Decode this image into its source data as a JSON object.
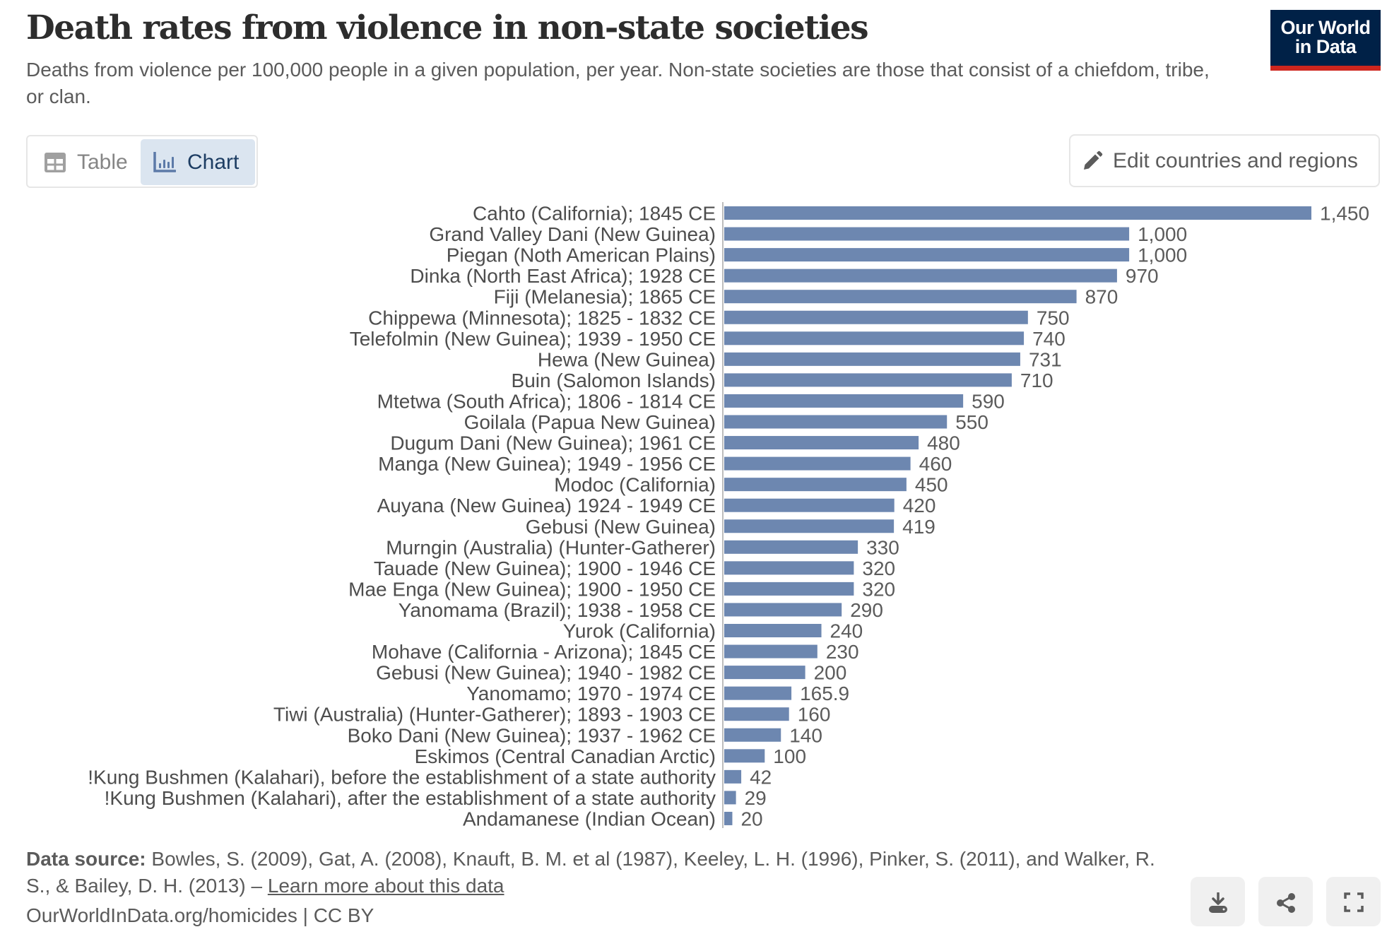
{
  "header": {
    "title": "Death rates from violence in non-state societies",
    "subtitle": "Deaths from violence per 100,000 people in a given population, per year. Non-state societies are those that consist of a chiefdom, tribe, or clan.",
    "logo_line1": "Our World",
    "logo_line2": "in Data"
  },
  "tabs": [
    {
      "label": "Table",
      "icon": "table-icon",
      "active": false
    },
    {
      "label": "Chart",
      "icon": "bar-chart-icon",
      "active": true
    }
  ],
  "edit_button": {
    "label": "Edit countries and regions",
    "icon": "pencil-icon"
  },
  "colors": {
    "bar": "#6d87b0",
    "brand": "#002147",
    "brand_accent": "#ce261e",
    "active_tab_bg": "#dbe5f0"
  },
  "chart_data": {
    "type": "bar",
    "orientation": "horizontal",
    "title": "Death rates from violence in non-state societies",
    "xlabel": "",
    "ylabel": "",
    "unit": "deaths per 100,000 per year",
    "xlim": [
      0,
      1450
    ],
    "grid": false,
    "categories": [
      "Cahto (California); 1845 CE",
      "Grand Valley Dani (New Guinea)",
      "Piegan (Noth American Plains)",
      "Dinka (North East Africa); 1928 CE",
      "Fiji (Melanesia); 1865 CE",
      "Chippewa (Minnesota); 1825 - 1832 CE",
      "Telefolmin (New Guinea); 1939 - 1950 CE",
      "Hewa (New Guinea)",
      "Buin (Salomon Islands)",
      "Mtetwa (South Africa); 1806 - 1814 CE",
      "Goilala (Papua New Guinea)",
      "Dugum Dani (New Guinea); 1961 CE",
      "Manga (New Guinea); 1949 - 1956 CE",
      "Modoc (California)",
      "Auyana (New Guinea) 1924 - 1949 CE",
      "Gebusi (New Guinea)",
      "Murngin (Australia) (Hunter-Gatherer)",
      "Tauade (New Guinea); 1900 - 1946 CE",
      "Mae Enga (New Guinea); 1900 - 1950 CE",
      "Yanomama (Brazil); 1938 - 1958 CE",
      "Yurok (California)",
      "Mohave (California - Arizona); 1845 CE",
      "Gebusi (New Guinea); 1940 - 1982 CE",
      "Yanomamo; 1970 - 1974 CE",
      "Tiwi (Australia) (Hunter-Gatherer); 1893 - 1903 CE",
      "Boko Dani (New Guinea); 1937 - 1962 CE",
      "Eskimos (Central Canadian Arctic)",
      "!Kung Bushmen (Kalahari), before the establishment of a state authority",
      "!Kung Bushmen (Kalahari), after the establishment of a state authority",
      "Andamanese (Indian Ocean)"
    ],
    "values": [
      1450,
      1000,
      1000,
      970,
      870,
      750,
      740,
      731,
      710,
      590,
      550,
      480,
      460,
      450,
      420,
      419,
      330,
      320,
      320,
      290,
      240,
      230,
      200,
      165.9,
      160,
      140,
      100,
      42,
      29,
      20
    ],
    "value_labels": [
      "1,450",
      "1,000",
      "1,000",
      "970",
      "870",
      "750",
      "740",
      "731",
      "710",
      "590",
      "550",
      "480",
      "460",
      "450",
      "420",
      "419",
      "330",
      "320",
      "320",
      "290",
      "240",
      "230",
      "200",
      "165.9",
      "160",
      "140",
      "100",
      "42",
      "29",
      "20"
    ]
  },
  "footer": {
    "source_label": "Data source:",
    "source_text": " Bowles, S. (2009), Gat, A. (2008), Knauft, B. M. et al (1987), Keeley, L. H. (1996), Pinker, S. (2011), and Walker, R. S., & Bailey, D. H. (2013) – ",
    "learn_more": "Learn more about this data",
    "url_line": "OurWorldInData.org/homicides | CC BY"
  },
  "actions": [
    {
      "name": "download",
      "icon": "download-icon"
    },
    {
      "name": "share",
      "icon": "share-icon"
    },
    {
      "name": "fullscreen",
      "icon": "fullscreen-icon"
    }
  ]
}
